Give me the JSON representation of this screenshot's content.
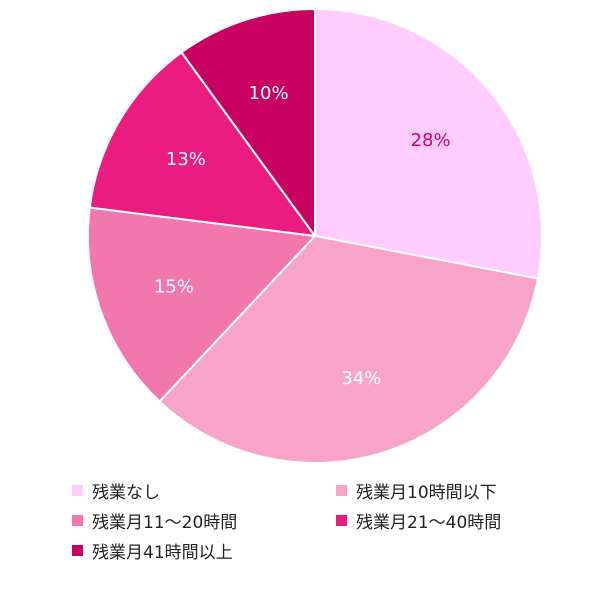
{
  "chart_data": {
    "type": "pie",
    "start_angle_deg": 0,
    "direction": "clockwise",
    "slices": [
      {
        "label": "残業なし",
        "value": 28,
        "value_label": "28%",
        "color": "#ffccff",
        "text_color": "#cc0077"
      },
      {
        "label": "残業月10時間以下",
        "value": 34,
        "value_label": "34%",
        "color": "#f7a4c8",
        "text_color": "#ffffff"
      },
      {
        "label": "残業月11～20時間",
        "value": 15,
        "value_label": "15%",
        "color": "#f177ae",
        "text_color": "#ffffff"
      },
      {
        "label": "残業月21～40時間",
        "value": 13,
        "value_label": "13%",
        "color": "#eb1c7f",
        "text_color": "#ffffff"
      },
      {
        "label": "残業月41時間以上",
        "value": 10,
        "value_label": "10%",
        "color": "#c8005f",
        "text_color": "#ffffff"
      }
    ],
    "legend": "bottom"
  }
}
